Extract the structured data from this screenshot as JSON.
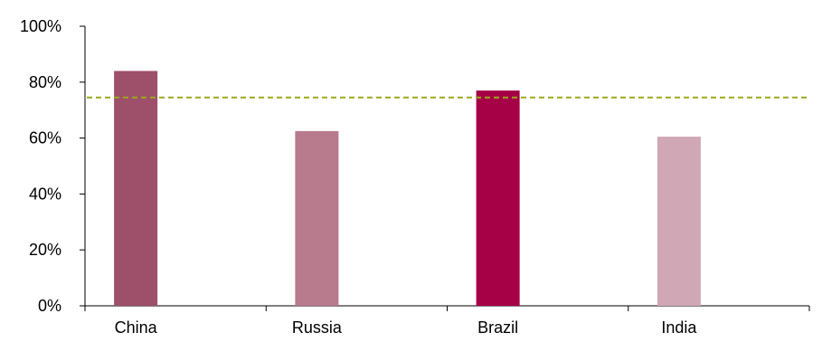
{
  "chart_data": {
    "type": "bar",
    "title": "",
    "xlabel": "",
    "ylabel": "",
    "categories": [
      "China",
      "Russia",
      "Brazil",
      "India"
    ],
    "values": [
      84,
      62.5,
      77,
      60.5
    ],
    "bar_colors": [
      "#9e4f6a",
      "#b87a8d",
      "#a60046",
      "#cfa7b5"
    ],
    "ylim": [
      0,
      100
    ],
    "yticks": [
      0,
      20,
      40,
      60,
      80,
      100
    ],
    "ytick_labels": [
      "0%",
      "20%",
      "40%",
      "60%",
      "80%",
      "100%"
    ],
    "reference_line": {
      "value": 74.5,
      "color": "#9aaa1c",
      "style": "dashed"
    },
    "grid": false,
    "legend": "none"
  }
}
